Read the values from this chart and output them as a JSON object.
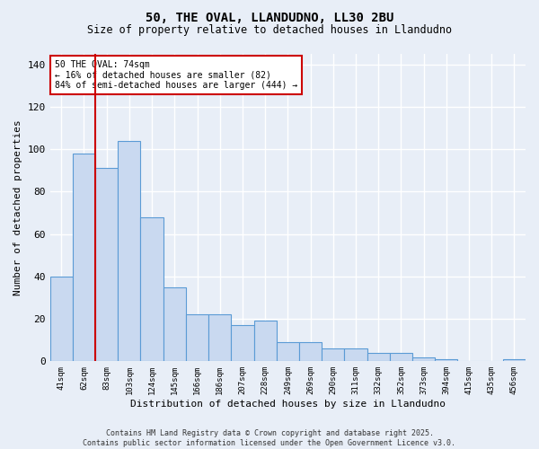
{
  "title": "50, THE OVAL, LLANDUDNO, LL30 2BU",
  "subtitle": "Size of property relative to detached houses in Llandudno",
  "xlabel": "Distribution of detached houses by size in Llandudno",
  "ylabel": "Number of detached properties",
  "categories": [
    "41sqm",
    "62sqm",
    "83sqm",
    "103sqm",
    "124sqm",
    "145sqm",
    "166sqm",
    "186sqm",
    "207sqm",
    "228sqm",
    "249sqm",
    "269sqm",
    "290sqm",
    "311sqm",
    "332sqm",
    "352sqm",
    "373sqm",
    "394sqm",
    "415sqm",
    "435sqm",
    "456sqm"
  ],
  "values": [
    40,
    98,
    91,
    104,
    68,
    35,
    22,
    22,
    17,
    19,
    9,
    9,
    6,
    6,
    4,
    4,
    2,
    1,
    0,
    0,
    1
  ],
  "bar_color": "#c9d9f0",
  "bar_edge_color": "#5b9bd5",
  "background_color": "#e8eef7",
  "grid_color": "#ffffff",
  "annotation_text": "50 THE OVAL: 74sqm\n← 16% of detached houses are smaller (82)\n84% of semi-detached houses are larger (444) →",
  "vline_x_index": 1.5,
  "vline_color": "#cc0000",
  "ylim": [
    0,
    145
  ],
  "yticks": [
    0,
    20,
    40,
    60,
    80,
    100,
    120,
    140
  ],
  "footer_line1": "Contains HM Land Registry data © Crown copyright and database right 2025.",
  "footer_line2": "Contains public sector information licensed under the Open Government Licence v3.0."
}
